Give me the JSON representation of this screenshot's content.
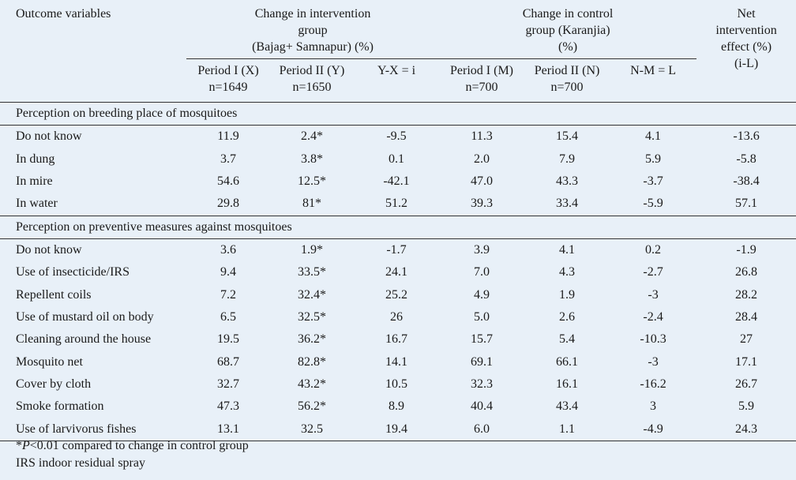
{
  "header": {
    "outcome": "Outcome variables",
    "intervention_title_1": "Change in intervention",
    "intervention_title_2": "group",
    "intervention_title_3": "(Bajag+ Samnapur) (%)",
    "control_title_1": "Change in control",
    "control_title_2": "group (Karanjia)",
    "control_title_3": "(%)",
    "net_title_1": "Net",
    "net_title_2": "intervention",
    "net_title_3": "effect (%)",
    "sub": {
      "p1x_1": "Period I (X)",
      "p1x_2": "n=1649",
      "p2y_1": "Period II (Y)",
      "p2y_2": "n=1650",
      "yx": "Y-X = i",
      "p1m_1": "Period I (M)",
      "p1m_2": "n=700",
      "p2n_1": "Period II (N)",
      "p2n_2": "n=700",
      "nm": "N-M = L",
      "il": "(i-L)"
    }
  },
  "sections": [
    {
      "title": "Perception on breeding place of mosquitoes",
      "rows": [
        [
          "Do not know",
          "11.9",
          "2.4*",
          "-9.5",
          "11.3",
          "15.4",
          "4.1",
          "-13.6"
        ],
        [
          "In dung",
          "3.7",
          "3.8*",
          "0.1",
          "2.0",
          "7.9",
          "5.9",
          "-5.8"
        ],
        [
          "In mire",
          "54.6",
          "12.5*",
          "-42.1",
          "47.0",
          "43.3",
          "-3.7",
          "-38.4"
        ],
        [
          "In water",
          "29.8",
          "81*",
          "51.2",
          "39.3",
          "33.4",
          "-5.9",
          "57.1"
        ]
      ]
    },
    {
      "title": "Perception on preventive measures against mosquitoes",
      "rows": [
        [
          "Do not know",
          "3.6",
          "1.9*",
          "-1.7",
          "3.9",
          "4.1",
          "0.2",
          "-1.9"
        ],
        [
          "Use of insecticide/IRS",
          "9.4",
          "33.5*",
          "24.1",
          "7.0",
          "4.3",
          "-2.7",
          "26.8"
        ],
        [
          "Repellent coils",
          "7.2",
          "32.4*",
          "25.2",
          "4.9",
          "1.9",
          "-3",
          "28.2"
        ],
        [
          "Use of mustard oil on body",
          "6.5",
          "32.5*",
          "26",
          "5.0",
          "2.6",
          "-2.4",
          "28.4"
        ],
        [
          "Cleaning around the house",
          "19.5",
          "36.2*",
          "16.7",
          "15.7",
          "5.4",
          "-10.3",
          "27"
        ],
        [
          "Mosquito net",
          "68.7",
          "82.8*",
          "14.1",
          "69.1",
          "66.1",
          "-3",
          "17.1"
        ],
        [
          "Cover by cloth",
          "32.7",
          "43.2*",
          "10.5",
          "32.3",
          "16.1",
          "-16.2",
          "26.7"
        ],
        [
          "Smoke formation",
          "47.3",
          "56.2*",
          "8.9",
          "40.4",
          "43.4",
          "3",
          "5.9"
        ],
        [
          "Use of larvivorus fishes",
          "13.1",
          "32.5",
          "19.4",
          "6.0",
          "1.1",
          "-4.9",
          "24.3"
        ]
      ]
    }
  ],
  "footnotes": {
    "f1_star": "*",
    "f1_p": "P",
    "f1_rest": "<0.01 compared to change in control group",
    "f2": "IRS indoor residual spray"
  }
}
